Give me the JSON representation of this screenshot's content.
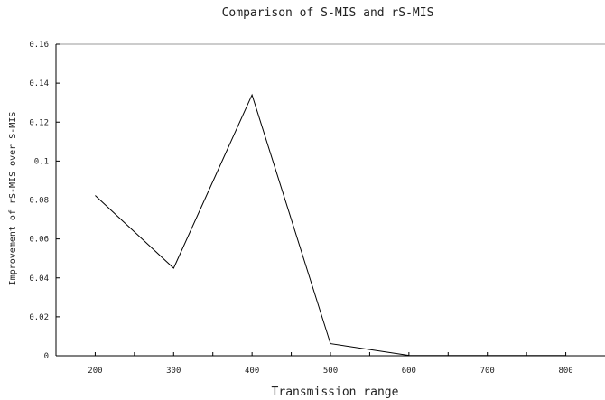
{
  "chart_data": {
    "type": "line",
    "title": "Comparison of S-MIS and rS-MIS",
    "xlabel": "Transmission range",
    "ylabel": "Improvement of rS-MIS over S-MIS",
    "xlim": [
      150,
      850
    ],
    "ylim": [
      0,
      0.16
    ],
    "x_ticks": [
      200,
      300,
      400,
      500,
      600,
      700,
      800
    ],
    "x_tick_labels": [
      "200",
      "300",
      "400",
      "500",
      "600",
      "700",
      "800"
    ],
    "x_minor_ticks": [
      250,
      350,
      450,
      550,
      650,
      750
    ],
    "y_ticks": [
      0,
      0.02,
      0.04,
      0.06,
      0.08,
      0.1,
      0.12,
      0.14,
      0.16
    ],
    "y_tick_labels": [
      "0",
      "0.02",
      "0.04",
      "0.06",
      "0.08",
      "0.1",
      "0.12",
      "0.14",
      "0.16"
    ],
    "grid": false,
    "legend": "none",
    "series": [
      {
        "x": [
          200,
          300,
          400,
          500,
          600,
          700,
          800
        ],
        "values": [
          0.0823,
          0.045,
          0.134,
          0.0062,
          0.0002,
          0.0001,
          0.0001
        ],
        "color": "#000000"
      }
    ]
  }
}
